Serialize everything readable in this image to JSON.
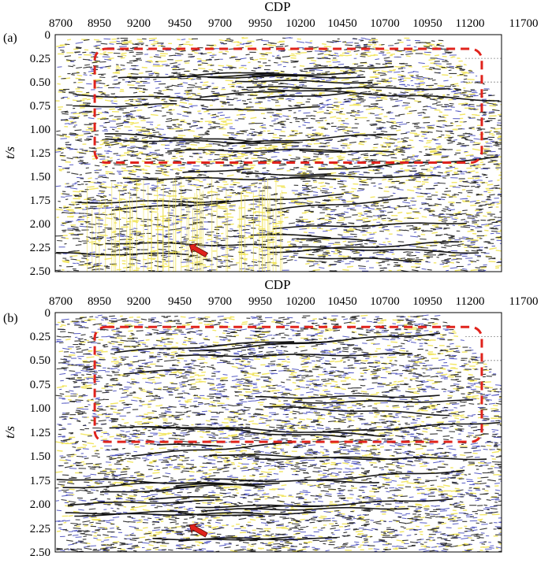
{
  "figure": {
    "panels": [
      {
        "label": "(a)",
        "x_axis_title": "CDP",
        "y_axis_title": "t/s",
        "x_ticks": [
          "8700",
          "8950",
          "9200",
          "9450",
          "9700",
          "9950",
          "10200",
          "10450",
          "10700",
          "10950",
          "11200",
          "11700"
        ],
        "y_ticks": [
          "0",
          "0.25",
          "0.50",
          "0.75",
          "1.00",
          "1.25",
          "1.50",
          "1.75",
          "2.00",
          "2.25",
          "2.50"
        ],
        "highlight_box": {
          "cdp_start": 8920,
          "cdp_end": 11310,
          "t_start": 0.15,
          "t_end": 1.35
        },
        "arrow": {
          "cdp": 9510,
          "t": 2.22
        }
      },
      {
        "label": "(b)",
        "x_axis_title": "CDP",
        "y_axis_title": "t/s",
        "x_ticks": [
          "8700",
          "8950",
          "9200",
          "9450",
          "9700",
          "9950",
          "10200",
          "10450",
          "10700",
          "10950",
          "11200",
          "11700"
        ],
        "y_ticks": [
          "0",
          "0.25",
          "0.50",
          "0.75",
          "1.00",
          "1.25",
          "1.50",
          "1.75",
          "2.00",
          "2.25",
          "2.50"
        ],
        "highlight_box": {
          "cdp_start": 8920,
          "cdp_end": 11310,
          "t_start": 0.15,
          "t_end": 1.35
        },
        "arrow": {
          "cdp": 9510,
          "t": 2.22
        }
      }
    ],
    "colors": {
      "trace_dark": "#141414",
      "trace_yellow": "#f0e24a",
      "trace_blue": "#3a3fb8",
      "highlight_box": "#e0231c",
      "arrow": "#e0231c"
    }
  }
}
